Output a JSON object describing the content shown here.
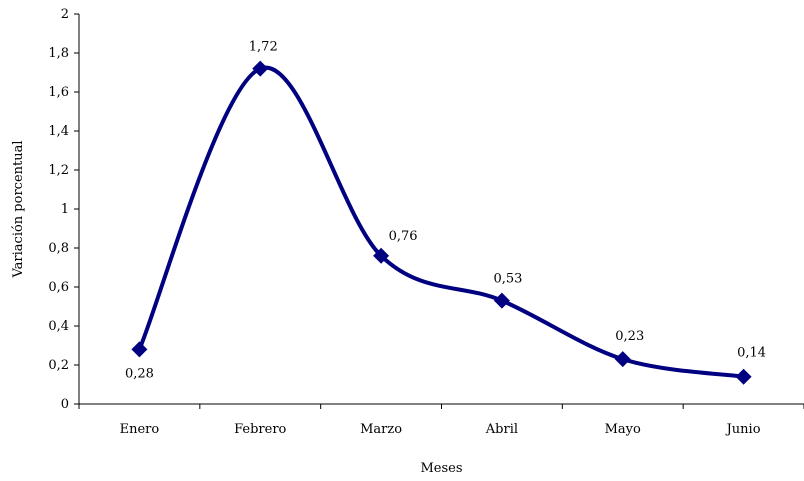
{
  "chart_data": {
    "type": "line",
    "title": "",
    "xlabel": "Meses",
    "ylabel": "Variación porcentual",
    "categories": [
      "Enero",
      "Febrero",
      "Marzo",
      "Abril",
      "Mayo",
      "Junio"
    ],
    "series": [
      {
        "values": [
          0.28,
          1.72,
          0.76,
          0.53,
          0.23,
          0.14
        ],
        "data_labels": [
          "0,28",
          "1,72",
          "0,76",
          "0,53",
          "0,23",
          "0,14"
        ]
      }
    ],
    "ylim": [
      0,
      2
    ],
    "y_ticks": [
      0,
      0.2,
      0.4,
      0.6,
      0.8,
      1,
      1.2,
      1.4,
      1.6,
      1.8,
      2
    ],
    "y_tick_labels": [
      "0",
      "0,2",
      "0,4",
      "0,6",
      "0,8",
      "1",
      "1,2",
      "1,4",
      "1,6",
      "1,8",
      "2"
    ],
    "smoothed": true,
    "marker": "diamond",
    "grid": false,
    "legend": "none",
    "colors": {
      "line": "#000080",
      "axis": "#000000"
    }
  }
}
